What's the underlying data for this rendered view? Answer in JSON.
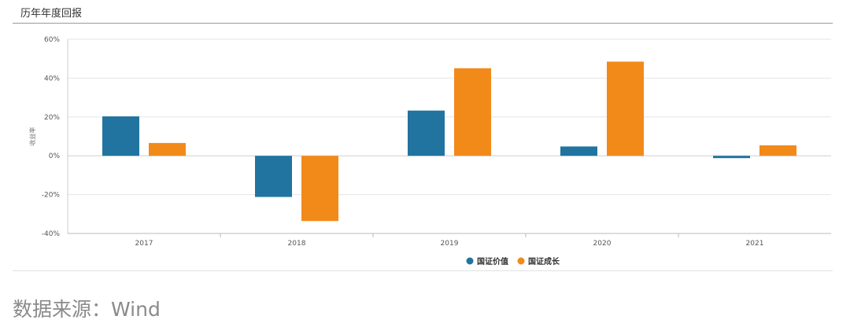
{
  "header": {
    "title": "历年年度回报"
  },
  "footer": {
    "source": "数据来源：Wind"
  },
  "chart_data": {
    "type": "bar",
    "categories": [
      "2017",
      "2018",
      "2019",
      "2020",
      "2021"
    ],
    "series": [
      {
        "name": "国证价值",
        "color": "#21749f",
        "values": [
          20.3,
          -21.2,
          23.3,
          4.8,
          -1.2
        ]
      },
      {
        "name": "国证成长",
        "color": "#f28a1a",
        "values": [
          6.6,
          -33.6,
          45.1,
          48.5,
          5.4
        ]
      }
    ],
    "ylabel": "收益率",
    "ylim": [
      -40,
      60
    ],
    "yticks": [
      -40,
      -20,
      0,
      20,
      40,
      60
    ],
    "ytick_labels": [
      "-40%",
      "-20%",
      "0%",
      "20%",
      "40%",
      "60%"
    ],
    "grid": true,
    "legend": "bottom-center"
  }
}
